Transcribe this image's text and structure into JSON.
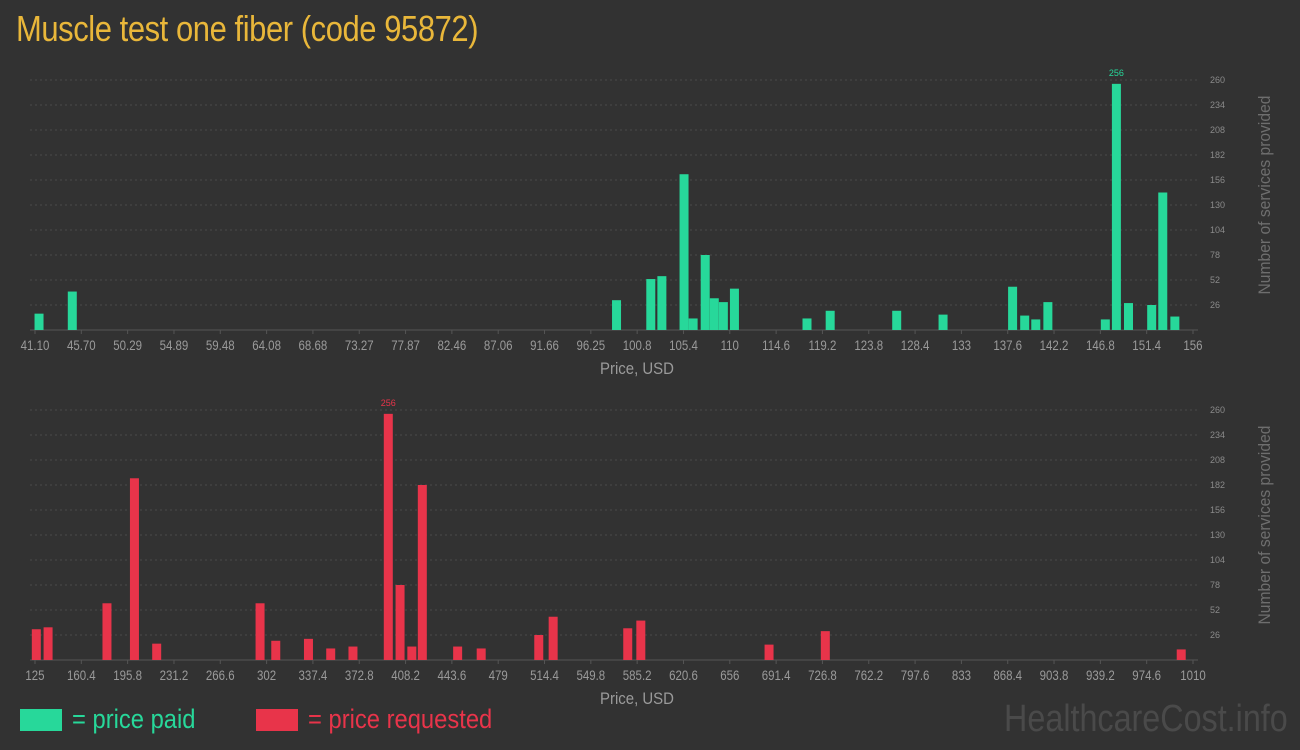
{
  "title": "Muscle test one fiber (code 95872)",
  "colors": {
    "paid": "#27d89a",
    "requested": "#e8344a",
    "title": "#e9b73a"
  },
  "legend": {
    "paid": "= price paid",
    "requested": "= price requested"
  },
  "watermark": "HealthcareCost.info",
  "chart_data": [
    {
      "type": "bar",
      "series_name": "price paid",
      "xlabel": "Price, USD",
      "ylabel": "Number of services provided",
      "ylim": [
        0,
        260
      ],
      "yticks": [
        26,
        52,
        78,
        104,
        130,
        156,
        182,
        208,
        234,
        260
      ],
      "xlim": [
        41.1,
        156
      ],
      "xticks": [
        "41.10",
        "45.70",
        "50.29",
        "54.89",
        "59.48",
        "64.08",
        "68.68",
        "73.27",
        "77.87",
        "82.46",
        "87.06",
        "91.66",
        "96.25",
        "100.8",
        "105.4",
        "110",
        "114.6",
        "119.2",
        "123.8",
        "128.4",
        "133",
        "137.6",
        "142.2",
        "146.8",
        "151.4",
        "156"
      ],
      "peak_label": "256",
      "bars": [
        {
          "x": 41.5,
          "value": 17
        },
        {
          "x": 44.8,
          "value": 40
        },
        {
          "x": 98.8,
          "value": 31
        },
        {
          "x": 102.2,
          "value": 53
        },
        {
          "x": 103.3,
          "value": 56
        },
        {
          "x": 105.5,
          "value": 162
        },
        {
          "x": 106.4,
          "value": 12
        },
        {
          "x": 107.6,
          "value": 78
        },
        {
          "x": 108.5,
          "value": 33
        },
        {
          "x": 109.4,
          "value": 29
        },
        {
          "x": 110.5,
          "value": 43
        },
        {
          "x": 117.7,
          "value": 12
        },
        {
          "x": 120.0,
          "value": 20
        },
        {
          "x": 126.6,
          "value": 20
        },
        {
          "x": 131.2,
          "value": 16
        },
        {
          "x": 138.1,
          "value": 45
        },
        {
          "x": 139.3,
          "value": 15
        },
        {
          "x": 140.4,
          "value": 11
        },
        {
          "x": 141.6,
          "value": 29
        },
        {
          "x": 147.3,
          "value": 11
        },
        {
          "x": 148.4,
          "value": 256
        },
        {
          "x": 149.6,
          "value": 28
        },
        {
          "x": 151.9,
          "value": 26
        },
        {
          "x": 153.0,
          "value": 143
        },
        {
          "x": 154.2,
          "value": 14
        }
      ]
    },
    {
      "type": "bar",
      "series_name": "price requested",
      "xlabel": "Price, USD",
      "ylabel": "Number of services provided",
      "ylim": [
        0,
        260
      ],
      "yticks": [
        26,
        52,
        78,
        104,
        130,
        156,
        182,
        208,
        234,
        260
      ],
      "xlim": [
        125,
        1010
      ],
      "xticks": [
        "125",
        "160.4",
        "195.8",
        "231.2",
        "266.6",
        "302",
        "337.4",
        "372.8",
        "408.2",
        "443.6",
        "479",
        "514.4",
        "549.8",
        "585.2",
        "620.6",
        "656",
        "691.4",
        "726.8",
        "762.2",
        "797.6",
        "833",
        "868.4",
        "903.8",
        "939.2",
        "974.6",
        "1010"
      ],
      "peak_label": "256",
      "bars": [
        {
          "x": 126,
          "value": 32
        },
        {
          "x": 135,
          "value": 34
        },
        {
          "x": 180,
          "value": 59
        },
        {
          "x": 201,
          "value": 189
        },
        {
          "x": 218,
          "value": 17
        },
        {
          "x": 297,
          "value": 59
        },
        {
          "x": 309,
          "value": 20
        },
        {
          "x": 334,
          "value": 22
        },
        {
          "x": 351,
          "value": 12
        },
        {
          "x": 368,
          "value": 14
        },
        {
          "x": 395,
          "value": 256
        },
        {
          "x": 404,
          "value": 78
        },
        {
          "x": 413,
          "value": 14
        },
        {
          "x": 421,
          "value": 182
        },
        {
          "x": 448,
          "value": 14
        },
        {
          "x": 466,
          "value": 12
        },
        {
          "x": 510,
          "value": 26
        },
        {
          "x": 521,
          "value": 45
        },
        {
          "x": 578,
          "value": 33
        },
        {
          "x": 588,
          "value": 41
        },
        {
          "x": 686,
          "value": 16
        },
        {
          "x": 729,
          "value": 30
        },
        {
          "x": 1001,
          "value": 11
        }
      ]
    }
  ]
}
